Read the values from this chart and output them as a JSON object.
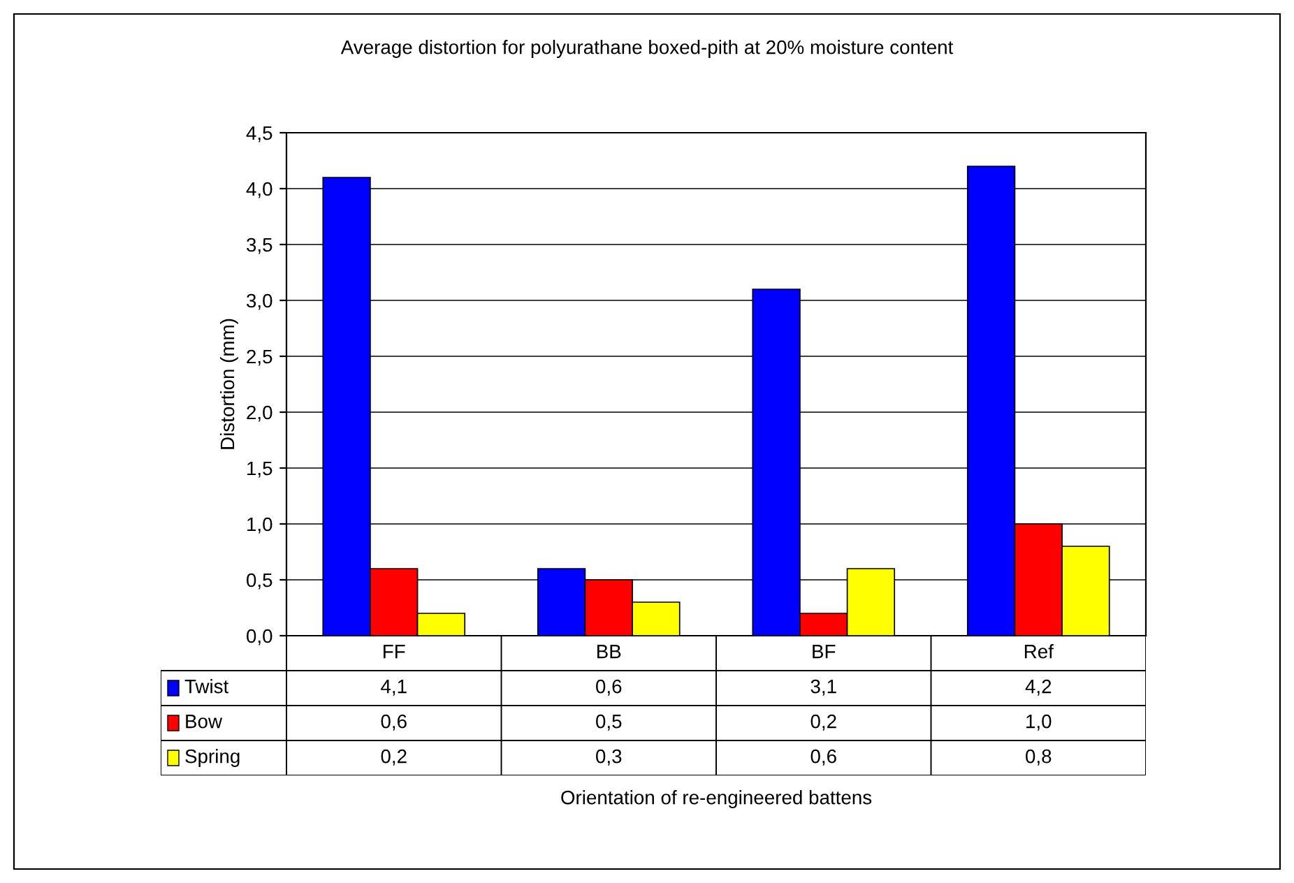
{
  "chart_data": {
    "type": "bar",
    "title": "Average distortion for polyurathane boxed-pith at 20% moisture content",
    "ylabel": "Distortion (mm)",
    "annotations": [
      "Orientation of re-engineered battens"
    ],
    "categories": [
      "FF",
      "BB",
      "BF",
      "Ref"
    ],
    "series": [
      {
        "name": "Twist",
        "color": "#0000ff",
        "values": [
          4.1,
          0.6,
          3.1,
          4.2
        ],
        "value_labels": [
          "4,1",
          "0,6",
          "3,1",
          "4,2"
        ]
      },
      {
        "name": "Bow",
        "color": "#ff0000",
        "values": [
          0.6,
          0.5,
          0.2,
          1.0
        ],
        "value_labels": [
          "0,6",
          "0,5",
          "0,2",
          "1,0"
        ]
      },
      {
        "name": "Spring",
        "color": "#ffff00",
        "values": [
          0.2,
          0.3,
          0.6,
          0.8
        ],
        "value_labels": [
          "0,2",
          "0,3",
          "0,6",
          "0,8"
        ]
      }
    ],
    "ylim": [
      0,
      4.5
    ],
    "yticks": [
      {
        "value": 0,
        "label": "0,0"
      },
      {
        "value": 0.5,
        "label": "0,5"
      },
      {
        "value": 1,
        "label": "1,0"
      },
      {
        "value": 1.5,
        "label": "1,5"
      },
      {
        "value": 2,
        "label": "2,0"
      },
      {
        "value": 2.5,
        "label": "2,5"
      },
      {
        "value": 3,
        "label": "3,0"
      },
      {
        "value": 3.5,
        "label": "3,5"
      },
      {
        "value": 4,
        "label": "4,0"
      },
      {
        "value": 4.5,
        "label": "4,5"
      }
    ],
    "grid": "y",
    "legend": "bottom left"
  }
}
